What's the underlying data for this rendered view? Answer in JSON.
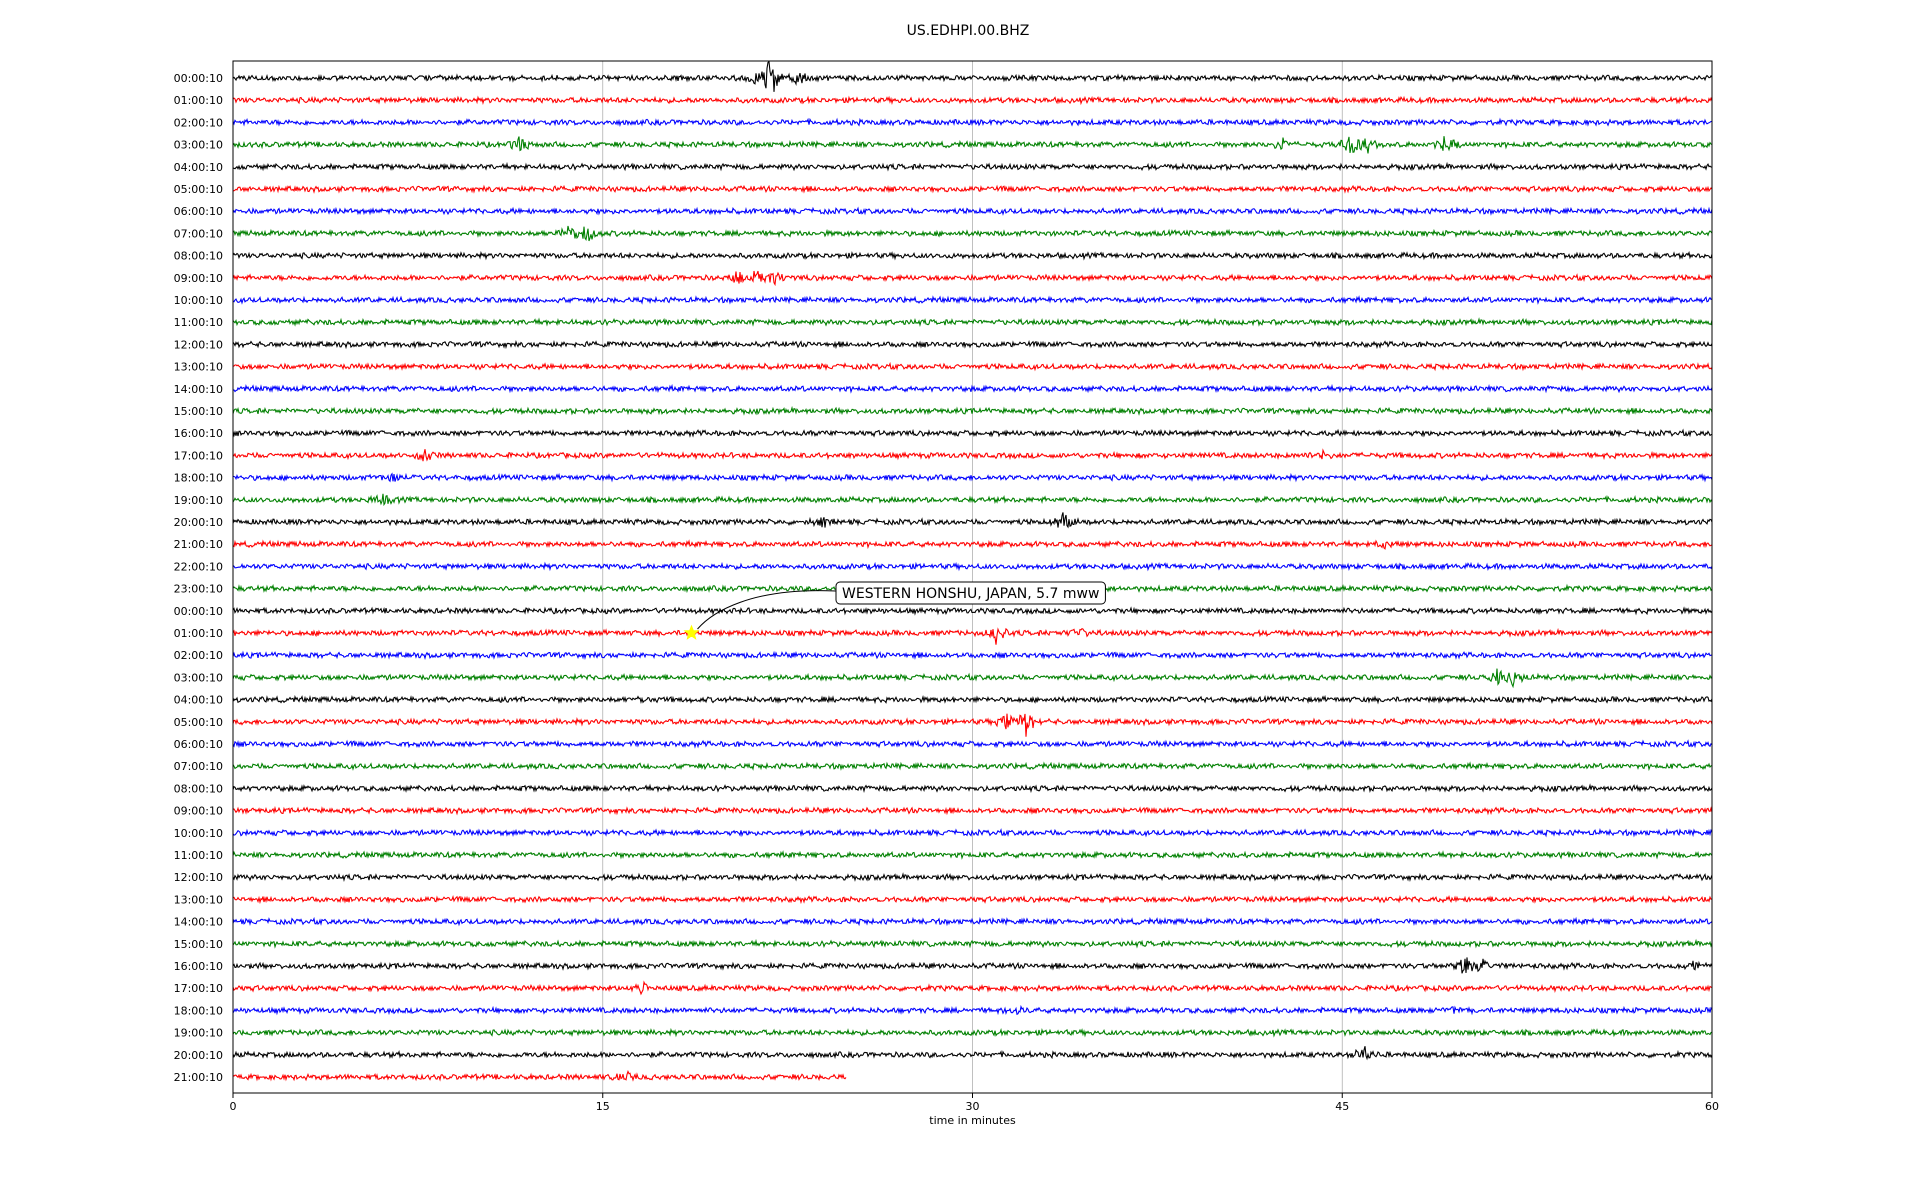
{
  "chart_data": {
    "type": "line",
    "title": "US.EDHPI.00.BHZ",
    "xlabel": "time in minutes",
    "xlim": [
      0,
      60
    ],
    "xticks": [
      0,
      15,
      30,
      45,
      60
    ],
    "grid_x": true,
    "row_colors": [
      "#000000",
      "#ff0000",
      "#0000ff",
      "#008000"
    ],
    "rows": [
      {
        "label": "00:00:10",
        "end_minute": 60,
        "events": [
          {
            "minute": 21.2,
            "amp": 8
          },
          {
            "minute": 21.8,
            "amp": 22
          },
          {
            "minute": 22.9,
            "amp": 9
          }
        ]
      },
      {
        "label": "01:00:10",
        "end_minute": 60,
        "events": []
      },
      {
        "label": "02:00:10",
        "end_minute": 60,
        "events": []
      },
      {
        "label": "03:00:10",
        "end_minute": 60,
        "events": [
          {
            "minute": 11.6,
            "amp": 9
          },
          {
            "minute": 42.6,
            "amp": 8
          },
          {
            "minute": 45.3,
            "amp": 14
          },
          {
            "minute": 46.0,
            "amp": 12
          },
          {
            "minute": 49.2,
            "amp": 10
          }
        ]
      },
      {
        "label": "04:00:10",
        "end_minute": 60,
        "events": []
      },
      {
        "label": "05:00:10",
        "end_minute": 60,
        "events": []
      },
      {
        "label": "06:00:10",
        "end_minute": 60,
        "events": []
      },
      {
        "label": "07:00:10",
        "end_minute": 60,
        "events": [
          {
            "minute": 13.6,
            "amp": 8
          },
          {
            "minute": 14.4,
            "amp": 12
          }
        ]
      },
      {
        "label": "08:00:10",
        "end_minute": 60,
        "events": []
      },
      {
        "label": "09:00:10",
        "end_minute": 60,
        "events": [
          {
            "minute": 20.5,
            "amp": 8
          },
          {
            "minute": 21.3,
            "amp": 14
          },
          {
            "minute": 22.0,
            "amp": 7
          }
        ]
      },
      {
        "label": "10:00:10",
        "end_minute": 60,
        "events": []
      },
      {
        "label": "11:00:10",
        "end_minute": 60,
        "events": []
      },
      {
        "label": "12:00:10",
        "end_minute": 60,
        "events": []
      },
      {
        "label": "13:00:10",
        "end_minute": 60,
        "events": []
      },
      {
        "label": "14:00:10",
        "end_minute": 60,
        "events": []
      },
      {
        "label": "15:00:10",
        "end_minute": 60,
        "events": []
      },
      {
        "label": "16:00:10",
        "end_minute": 60,
        "events": []
      },
      {
        "label": "17:00:10",
        "end_minute": 60,
        "events": [
          {
            "minute": 7.7,
            "amp": 10
          },
          {
            "minute": 44.2,
            "amp": 4
          }
        ]
      },
      {
        "label": "18:00:10",
        "end_minute": 60,
        "events": [
          {
            "minute": 6.5,
            "amp": 4
          }
        ]
      },
      {
        "label": "19:00:10",
        "end_minute": 60,
        "events": [
          {
            "minute": 6.1,
            "amp": 5
          }
        ]
      },
      {
        "label": "20:00:10",
        "end_minute": 60,
        "events": [
          {
            "minute": 23.9,
            "amp": 5
          },
          {
            "minute": 33.7,
            "amp": 12
          }
        ]
      },
      {
        "label": "21:00:10",
        "end_minute": 60,
        "events": [
          {
            "minute": 46.7,
            "amp": 4
          }
        ]
      },
      {
        "label": "22:00:10",
        "end_minute": 60,
        "events": []
      },
      {
        "label": "23:00:10",
        "end_minute": 60,
        "events": []
      },
      {
        "label": "00:00:10",
        "end_minute": 60,
        "events": []
      },
      {
        "label": "01:00:10",
        "end_minute": 60,
        "events": [
          {
            "minute": 31.0,
            "amp": 12
          },
          {
            "minute": 34.3,
            "amp": 6
          }
        ]
      },
      {
        "label": "02:00:10",
        "end_minute": 60,
        "events": []
      },
      {
        "label": "03:00:10",
        "end_minute": 60,
        "events": [
          {
            "minute": 51.3,
            "amp": 10
          },
          {
            "minute": 51.9,
            "amp": 14
          }
        ]
      },
      {
        "label": "04:00:10",
        "end_minute": 60,
        "events": [
          {
            "minute": 16.6,
            "amp": 4
          }
        ]
      },
      {
        "label": "05:00:10",
        "end_minute": 60,
        "events": [
          {
            "minute": 31.4,
            "amp": 8
          },
          {
            "minute": 32.2,
            "amp": 16
          }
        ]
      },
      {
        "label": "06:00:10",
        "end_minute": 60,
        "events": []
      },
      {
        "label": "07:00:10",
        "end_minute": 60,
        "events": []
      },
      {
        "label": "08:00:10",
        "end_minute": 60,
        "events": []
      },
      {
        "label": "09:00:10",
        "end_minute": 60,
        "events": []
      },
      {
        "label": "10:00:10",
        "end_minute": 60,
        "events": []
      },
      {
        "label": "11:00:10",
        "end_minute": 60,
        "events": []
      },
      {
        "label": "12:00:10",
        "end_minute": 60,
        "events": []
      },
      {
        "label": "13:00:10",
        "end_minute": 60,
        "events": []
      },
      {
        "label": "14:00:10",
        "end_minute": 60,
        "events": []
      },
      {
        "label": "15:00:10",
        "end_minute": 60,
        "events": []
      },
      {
        "label": "16:00:10",
        "end_minute": 60,
        "events": [
          {
            "minute": 50.0,
            "amp": 12
          },
          {
            "minute": 50.7,
            "amp": 8
          },
          {
            "minute": 59.2,
            "amp": 6
          }
        ]
      },
      {
        "label": "17:00:10",
        "end_minute": 60,
        "events": [
          {
            "minute": 16.6,
            "amp": 5
          }
        ]
      },
      {
        "label": "18:00:10",
        "end_minute": 60,
        "events": [
          {
            "minute": 31.8,
            "amp": 4
          },
          {
            "minute": 49.5,
            "amp": 3
          }
        ]
      },
      {
        "label": "19:00:10",
        "end_minute": 60,
        "events": []
      },
      {
        "label": "20:00:10",
        "end_minute": 60,
        "events": [
          {
            "minute": 45.9,
            "amp": 10
          }
        ]
      },
      {
        "label": "21:00:10",
        "end_minute": 24.9,
        "events": [
          {
            "minute": 15.9,
            "amp": 5
          }
        ]
      }
    ],
    "annotations": [
      {
        "text": "WESTERN HONSHU, JAPAN, 5.7 mww",
        "row": 25,
        "minute": 18.6,
        "marker": "star",
        "marker_color": "#ffff00"
      }
    ]
  }
}
